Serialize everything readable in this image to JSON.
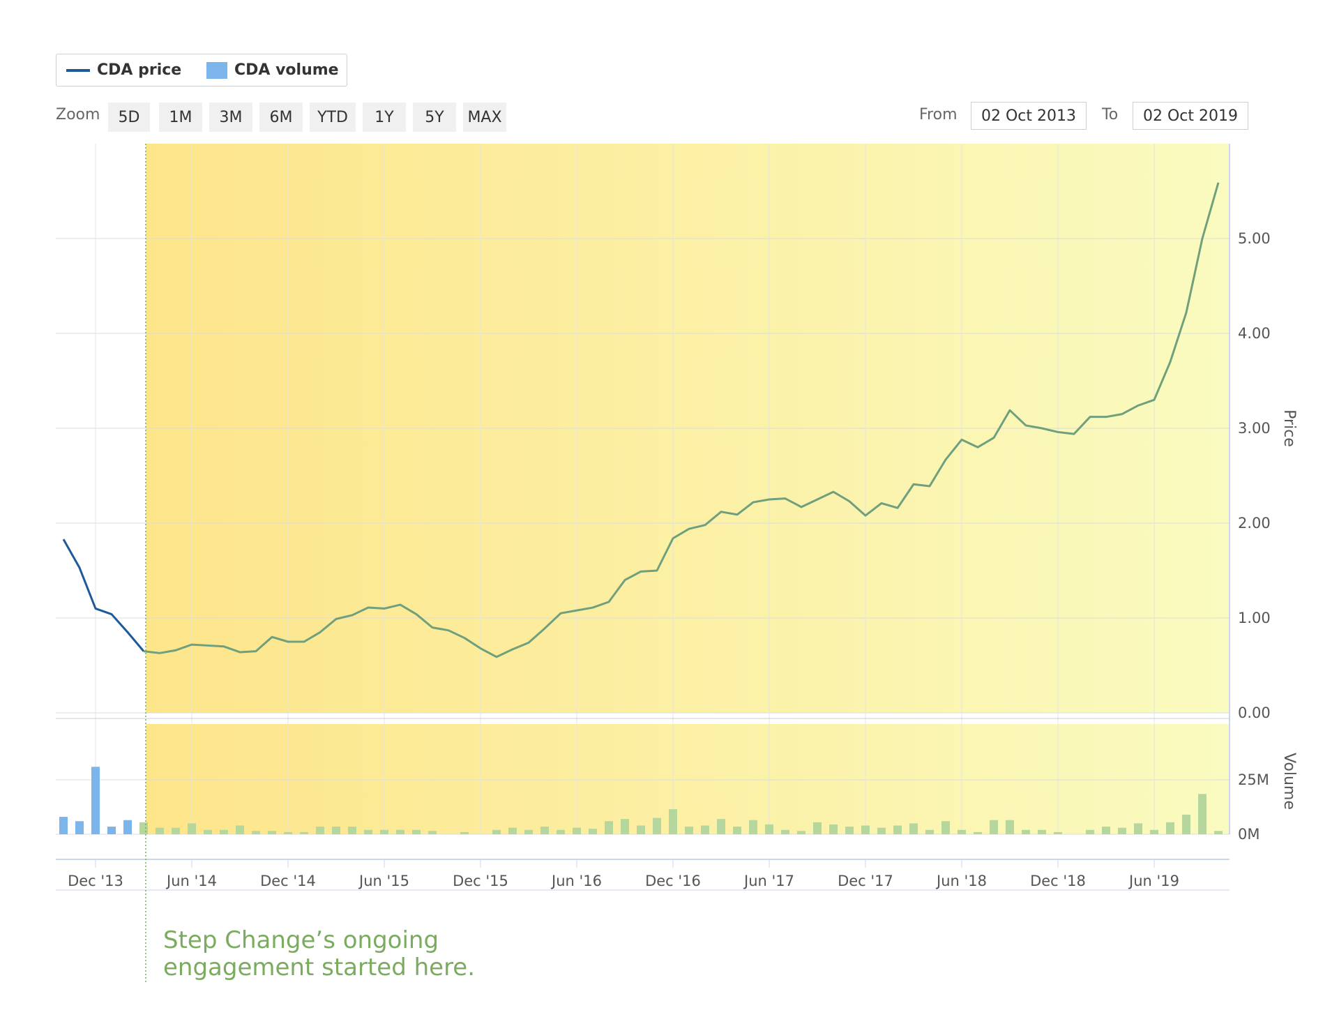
{
  "legend": {
    "price_label": "CDA price",
    "volume_label": "CDA volume"
  },
  "zoom": {
    "label": "Zoom",
    "buttons": [
      "5D",
      "1M",
      "3M",
      "6M",
      "YTD",
      "1Y",
      "5Y",
      "MAX"
    ]
  },
  "range": {
    "from_label": "From",
    "from_value": "02 Oct 2013",
    "to_label": "To",
    "to_value": "02 Oct 2019"
  },
  "annotation": {
    "line1": "Step Change’s ongoing",
    "line2": "engagement started here."
  },
  "colors": {
    "price_line_before": "#1d5a99",
    "price_line_after": "#6f9f7d",
    "volume_before": "#7cb5ec",
    "volume_after": "#b5d69c",
    "highlight_start": "#fde58a",
    "highlight_end": "#fafbc0",
    "annotation": "#7aab5e"
  },
  "chart_data": {
    "type": "line",
    "price_axis": {
      "label": "Price",
      "ticks": [
        "0.00",
        "1.00",
        "2.00",
        "3.00",
        "4.00",
        "5.00"
      ],
      "ylim": [
        0,
        6
      ]
    },
    "volume_axis": {
      "label": "Volume",
      "ticks": [
        "0M",
        "25M"
      ]
    },
    "x_ticks": [
      "Dec '13",
      "Jun '14",
      "Dec '14",
      "Jun '15",
      "Dec '15",
      "Jun '16",
      "Dec '16",
      "Jun '17",
      "Dec '17",
      "Jun '18",
      "Dec '18",
      "Jun '19"
    ],
    "x_range": [
      "2013-10",
      "2019-10"
    ],
    "engagement_start": "2014-03",
    "series": [
      {
        "name": "CDA price",
        "points": [
          [
            "2013-10",
            1.83
          ],
          [
            "2013-11",
            1.53
          ],
          [
            "2013-12",
            1.1
          ],
          [
            "2014-01",
            1.04
          ],
          [
            "2014-02",
            0.85
          ],
          [
            "2014-03",
            0.65
          ],
          [
            "2014-04",
            0.63
          ],
          [
            "2014-05",
            0.66
          ],
          [
            "2014-06",
            0.72
          ],
          [
            "2014-07",
            0.71
          ],
          [
            "2014-08",
            0.7
          ],
          [
            "2014-09",
            0.64
          ],
          [
            "2014-10",
            0.65
          ],
          [
            "2014-11",
            0.8
          ],
          [
            "2014-12",
            0.75
          ],
          [
            "2015-01",
            0.75
          ],
          [
            "2015-02",
            0.85
          ],
          [
            "2015-03",
            0.99
          ],
          [
            "2015-04",
            1.03
          ],
          [
            "2015-05",
            1.11
          ],
          [
            "2015-06",
            1.1
          ],
          [
            "2015-07",
            1.14
          ],
          [
            "2015-08",
            1.04
          ],
          [
            "2015-09",
            0.9
          ],
          [
            "2015-10",
            0.87
          ],
          [
            "2015-11",
            0.79
          ],
          [
            "2015-12",
            0.68
          ],
          [
            "2016-01",
            0.59
          ],
          [
            "2016-02",
            0.67
          ],
          [
            "2016-03",
            0.74
          ],
          [
            "2016-04",
            0.89
          ],
          [
            "2016-05",
            1.05
          ],
          [
            "2016-06",
            1.08
          ],
          [
            "2016-07",
            1.11
          ],
          [
            "2016-08",
            1.17
          ],
          [
            "2016-09",
            1.4
          ],
          [
            "2016-10",
            1.49
          ],
          [
            "2016-11",
            1.5
          ],
          [
            "2016-12",
            1.84
          ],
          [
            "2017-01",
            1.94
          ],
          [
            "2017-02",
            1.98
          ],
          [
            "2017-03",
            2.12
          ],
          [
            "2017-04",
            2.09
          ],
          [
            "2017-05",
            2.22
          ],
          [
            "2017-06",
            2.25
          ],
          [
            "2017-07",
            2.26
          ],
          [
            "2017-08",
            2.17
          ],
          [
            "2017-09",
            2.25
          ],
          [
            "2017-10",
            2.33
          ],
          [
            "2017-11",
            2.23
          ],
          [
            "2017-12",
            2.08
          ],
          [
            "2018-01",
            2.21
          ],
          [
            "2018-02",
            2.16
          ],
          [
            "2018-03",
            2.41
          ],
          [
            "2018-04",
            2.39
          ],
          [
            "2018-05",
            2.67
          ],
          [
            "2018-06",
            2.88
          ],
          [
            "2018-07",
            2.8
          ],
          [
            "2018-08",
            2.9
          ],
          [
            "2018-09",
            3.19
          ],
          [
            "2018-10",
            3.03
          ],
          [
            "2018-11",
            3.0
          ],
          [
            "2018-12",
            2.96
          ],
          [
            "2019-01",
            2.94
          ],
          [
            "2019-02",
            3.12
          ],
          [
            "2019-03",
            3.12
          ],
          [
            "2019-04",
            3.15
          ],
          [
            "2019-05",
            3.24
          ],
          [
            "2019-06",
            3.3
          ],
          [
            "2019-07",
            3.7
          ],
          [
            "2019-08",
            4.22
          ],
          [
            "2019-09",
            5.0
          ],
          [
            "2019-10",
            5.59
          ]
        ]
      },
      {
        "name": "CDA volume",
        "unit": "M",
        "points": [
          [
            "2013-10",
            8
          ],
          [
            "2013-11",
            6
          ],
          [
            "2013-12",
            31
          ],
          [
            "2014-01",
            3.5
          ],
          [
            "2014-02",
            6.5
          ],
          [
            "2014-03",
            5.5
          ],
          [
            "2014-04",
            3
          ],
          [
            "2014-05",
            3
          ],
          [
            "2014-06",
            5
          ],
          [
            "2014-07",
            2
          ],
          [
            "2014-08",
            2
          ],
          [
            "2014-09",
            4
          ],
          [
            "2014-10",
            1.5
          ],
          [
            "2014-11",
            1.5
          ],
          [
            "2014-12",
            1
          ],
          [
            "2015-01",
            1
          ],
          [
            "2015-02",
            3.5
          ],
          [
            "2015-03",
            3.5
          ],
          [
            "2015-04",
            3.5
          ],
          [
            "2015-05",
            2
          ],
          [
            "2015-06",
            2
          ],
          [
            "2015-07",
            2
          ],
          [
            "2015-08",
            2
          ],
          [
            "2015-09",
            1.5
          ],
          [
            "2015-10",
            0
          ],
          [
            "2015-11",
            1
          ],
          [
            "2015-12",
            0
          ],
          [
            "2016-01",
            2
          ],
          [
            "2016-02",
            3
          ],
          [
            "2016-03",
            2
          ],
          [
            "2016-04",
            3.5
          ],
          [
            "2016-05",
            2
          ],
          [
            "2016-06",
            3
          ],
          [
            "2016-07",
            2.5
          ],
          [
            "2016-08",
            6
          ],
          [
            "2016-09",
            7
          ],
          [
            "2016-10",
            4
          ],
          [
            "2016-11",
            7.5
          ],
          [
            "2016-12",
            11.5
          ],
          [
            "2017-01",
            3.5
          ],
          [
            "2017-02",
            4
          ],
          [
            "2017-03",
            7
          ],
          [
            "2017-04",
            3.5
          ],
          [
            "2017-05",
            6.5
          ],
          [
            "2017-06",
            4.5
          ],
          [
            "2017-07",
            2
          ],
          [
            "2017-08",
            1.5
          ],
          [
            "2017-09",
            5.5
          ],
          [
            "2017-10",
            4.5
          ],
          [
            "2017-11",
            3.5
          ],
          [
            "2017-12",
            4
          ],
          [
            "2018-01",
            3
          ],
          [
            "2018-02",
            4
          ],
          [
            "2018-03",
            5
          ],
          [
            "2018-04",
            2
          ],
          [
            "2018-05",
            6
          ],
          [
            "2018-06",
            2
          ],
          [
            "2018-07",
            1
          ],
          [
            "2018-08",
            6.5
          ],
          [
            "2018-09",
            6.5
          ],
          [
            "2018-10",
            2
          ],
          [
            "2018-11",
            2
          ],
          [
            "2018-12",
            1
          ],
          [
            "2019-01",
            0
          ],
          [
            "2019-02",
            2
          ],
          [
            "2019-03",
            3.5
          ],
          [
            "2019-04",
            3
          ],
          [
            "2019-05",
            5
          ],
          [
            "2019-06",
            2
          ],
          [
            "2019-07",
            5.5
          ],
          [
            "2019-08",
            9
          ],
          [
            "2019-09",
            18.5
          ],
          [
            "2019-10",
            1.5
          ]
        ]
      }
    ],
    "legend_position": "top-left",
    "grid": true
  }
}
